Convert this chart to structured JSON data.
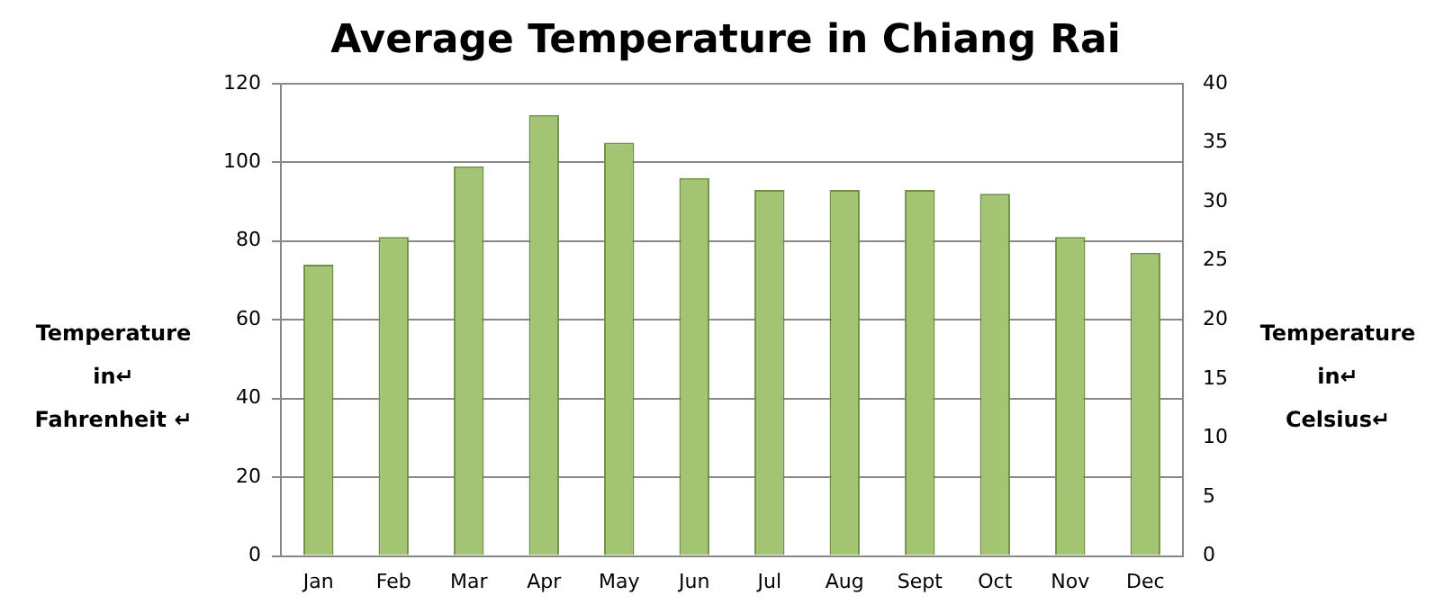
{
  "chart_data": {
    "type": "bar",
    "title": "Average Temperature in Chiang Rai",
    "ylabel": "Temperature in↵\nFahrenheit ↵",
    "y2label": "Temperature in↵\nCelsius↵",
    "categories": [
      "Jan",
      "Feb",
      "Mar",
      "Apr",
      "May",
      "Jun",
      "Jul",
      "Aug",
      "Sept",
      "Oct",
      "Nov",
      "Dec"
    ],
    "values": [
      74,
      81,
      99,
      112,
      105,
      96,
      93,
      93,
      93,
      92,
      81,
      77
    ],
    "color": "#a3c473",
    "ylim": [
      0,
      120
    ],
    "yticks": [
      0,
      20,
      40,
      60,
      80,
      100,
      120
    ],
    "y2lim": [
      0,
      40
    ],
    "y2ticks": [
      0,
      5,
      10,
      15,
      20,
      25,
      30,
      35,
      40
    ],
    "grid": "y"
  }
}
